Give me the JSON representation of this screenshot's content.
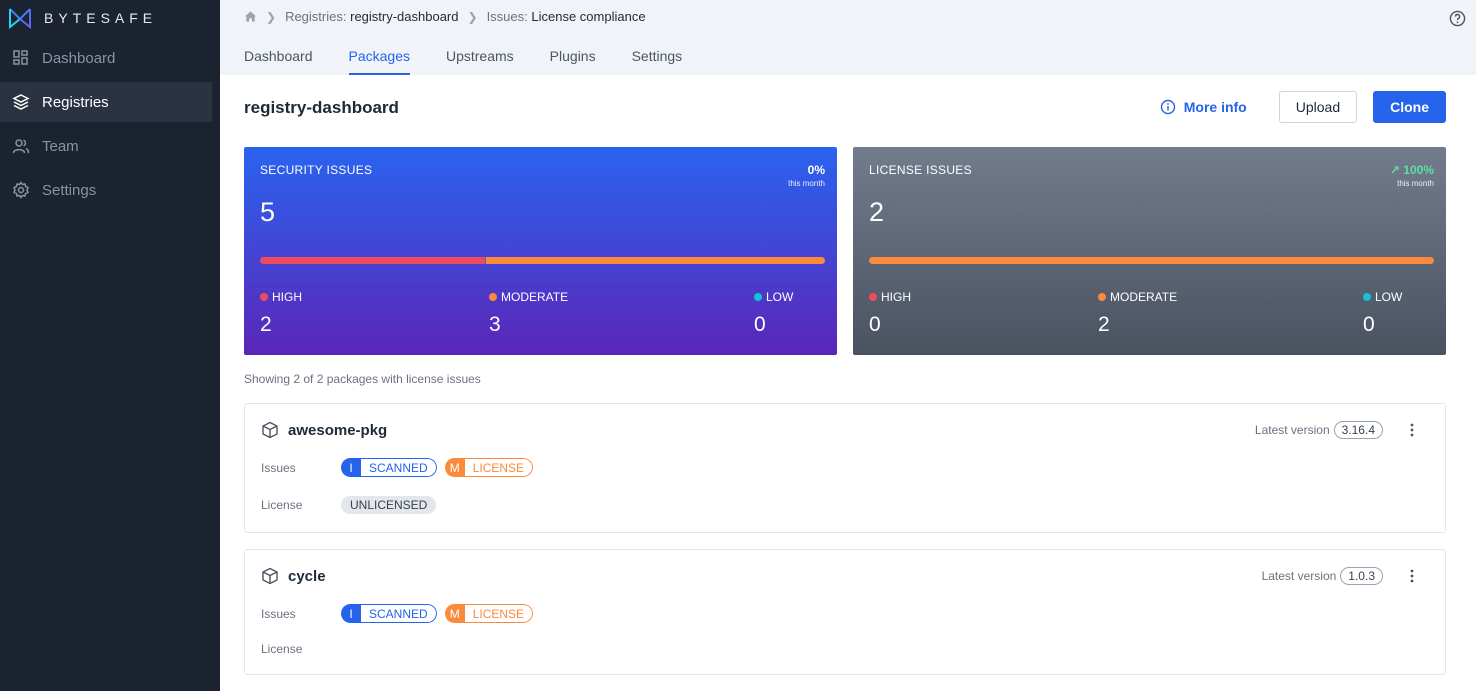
{
  "app": {
    "brand": "BYTESAFE"
  },
  "sidebar": {
    "items": [
      {
        "label": "Dashboard",
        "icon": "grid-icon"
      },
      {
        "label": "Registries",
        "icon": "layers-icon",
        "active": true
      },
      {
        "label": "Team",
        "icon": "users-icon"
      },
      {
        "label": "Settings",
        "icon": "gear-icon"
      }
    ]
  },
  "breadcrumb": {
    "registry_prefix": "Registries:",
    "registry_name": "registry-dashboard",
    "issues_prefix": "Issues:",
    "issues_name": "License compliance"
  },
  "tabs": [
    "Dashboard",
    "Packages",
    "Upstreams",
    "Plugins",
    "Settings"
  ],
  "active_tab": "Packages",
  "page": {
    "title": "registry-dashboard",
    "more_info": "More info",
    "upload": "Upload",
    "clone": "Clone"
  },
  "security_card": {
    "label": "SECURITY ISSUES",
    "count": "5",
    "change": "0%",
    "change_sub": "this month",
    "high_label": "HIGH",
    "high": "2",
    "moderate_label": "MODERATE",
    "moderate": "3",
    "low_label": "LOW",
    "low": "0",
    "bar_fractions": {
      "high": 0.4,
      "moderate": 0.6,
      "low": 0
    }
  },
  "license_card": {
    "label": "LICENSE ISSUES",
    "count": "2",
    "change": "100%",
    "change_sub": "this month",
    "high_label": "HIGH",
    "high": "0",
    "moderate_label": "MODERATE",
    "moderate": "2",
    "low_label": "LOW",
    "low": "0",
    "bar_fractions": {
      "high": 0,
      "moderate": 1,
      "low": 0
    }
  },
  "showing": "Showing 2 of 2 packages with license issues",
  "packages": [
    {
      "name": "awesome-pkg",
      "latest_label": "Latest version",
      "version": "3.16.4",
      "issues_label": "Issues",
      "badge1_key": "I",
      "badge1_val": "SCANNED",
      "badge2_key": "M",
      "badge2_val": "LICENSE",
      "license_label": "License",
      "license": "UNLICENSED"
    },
    {
      "name": "cycle",
      "latest_label": "Latest version",
      "version": "1.0.3",
      "issues_label": "Issues",
      "badge1_key": "I",
      "badge1_val": "SCANNED",
      "badge2_key": "M",
      "badge2_val": "LICENSE",
      "license_label": "License",
      "license": ""
    }
  ],
  "colors": {
    "sidebar_bg": "#1b2230",
    "accent": "#2563eb",
    "high": "#ef4b5c",
    "moderate": "#fb8a3c",
    "low": "#16c2d5"
  }
}
